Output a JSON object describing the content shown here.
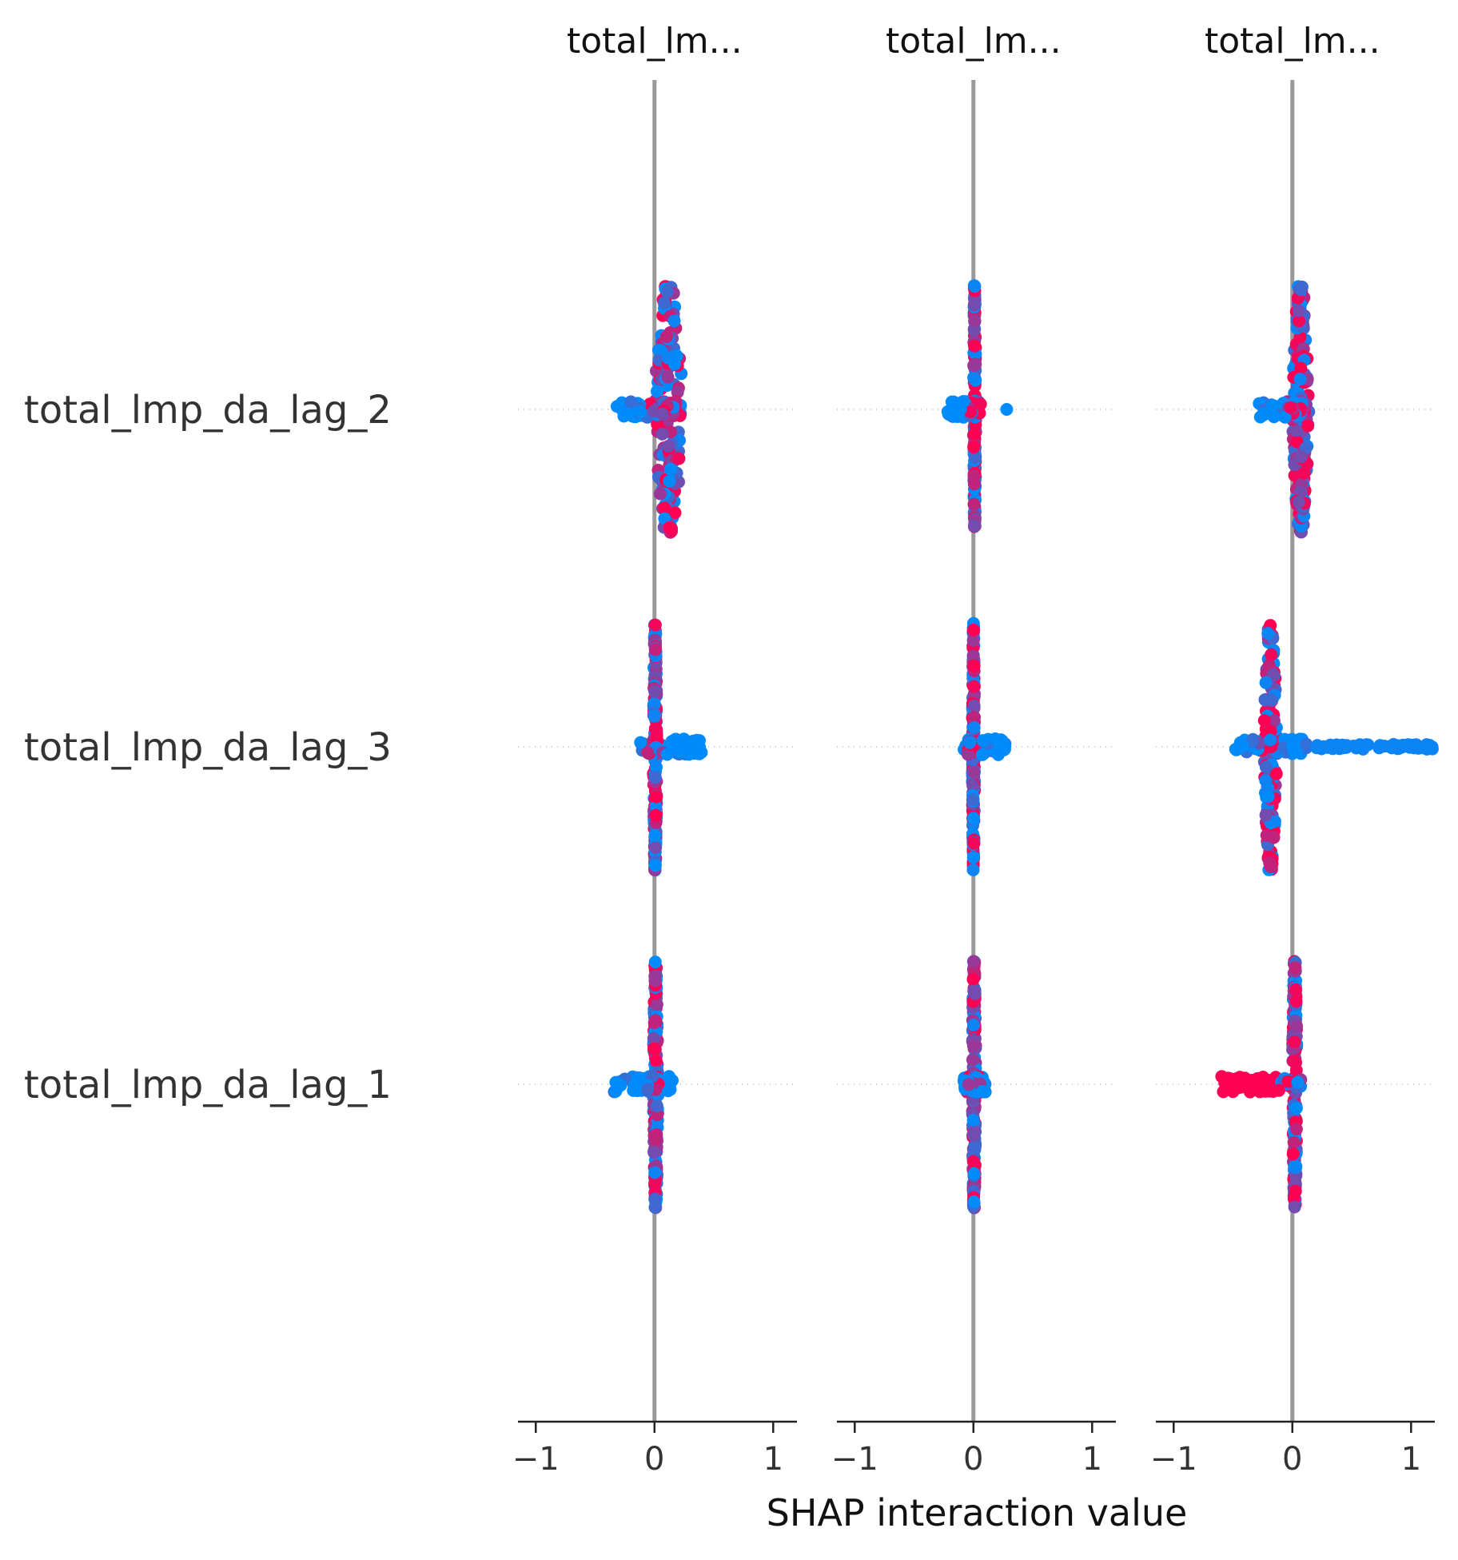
{
  "chart_data": {
    "type": "scatter",
    "subtype": "shap-interaction-beeswarm",
    "xlabel": "SHAP interaction value",
    "column_titles": [
      "total_lm...",
      "total_lm...",
      "total_lm..."
    ],
    "row_labels": [
      "total_lmp_da_lag_2",
      "total_lmp_da_lag_3",
      "total_lmp_da_lag_1"
    ],
    "xlim": [
      -1.15,
      1.2
    ],
    "xticks": [
      -1,
      0,
      1
    ],
    "xtick_labels": [
      "−1",
      "0",
      "1"
    ],
    "color_low": "#008bfb",
    "color_high": "#ff0052",
    "zero_line_color": "#999999",
    "grid": false,
    "cells": [
      [
        {
          "core": [
            0.0,
            0.24
          ],
          "spread": [
            -0.32,
            0.22
          ],
          "tail": [],
          "tail_color": ""
        },
        {
          "core": [
            0.0,
            0.02
          ],
          "spread": [
            -0.22,
            0.06
          ],
          "tail": [
            0.28
          ],
          "tail_color": "low"
        },
        {
          "core": [
            0.0,
            0.14
          ],
          "spread": [
            -0.28,
            0.12
          ],
          "tail": [],
          "tail_color": ""
        }
      ],
      [
        {
          "core": [
            -0.01,
            0.02
          ],
          "spread": [
            -0.12,
            0.4
          ],
          "tail": [],
          "tail_color": ""
        },
        {
          "core": [
            -0.01,
            0.01
          ],
          "spread": [
            -0.08,
            0.28
          ],
          "tail": [],
          "tail_color": ""
        },
        {
          "core": [
            -0.24,
            -0.13
          ],
          "spread": [
            -0.48,
            0.12
          ],
          "tail": [
            0.2,
            1.18
          ],
          "tail_color": "low"
        }
      ],
      [
        {
          "core": [
            -0.01,
            0.03
          ],
          "spread": [
            -0.34,
            0.15
          ],
          "tail": [],
          "tail_color": ""
        },
        {
          "core": [
            -0.01,
            0.02
          ],
          "spread": [
            -0.08,
            0.1
          ],
          "tail": [],
          "tail_color": ""
        },
        {
          "core": [
            0.0,
            0.04
          ],
          "spread": [
            -0.6,
            0.08
          ],
          "tail": [],
          "tail_color": "high"
        }
      ]
    ]
  }
}
